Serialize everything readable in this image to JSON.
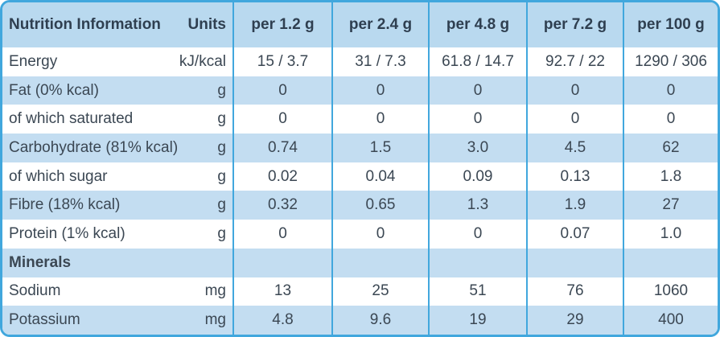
{
  "table": {
    "header": {
      "label": "Nutrition Information",
      "units": "Units",
      "columns": [
        "per 1.2 g",
        "per 2.4 g",
        "per 4.8 g",
        "per 7.2 g",
        "per 100 g"
      ]
    },
    "rows": [
      {
        "label": "Energy",
        "unit": "kJ/kcal",
        "values": [
          "15 / 3.7",
          "31 / 7.3",
          "61.8 / 14.7",
          "92.7 / 22",
          "1290 / 306"
        ]
      },
      {
        "label": "Fat (0% kcal)",
        "unit": "g",
        "values": [
          "0",
          "0",
          "0",
          "0",
          "0"
        ]
      },
      {
        "label": "of which saturated",
        "unit": "g",
        "values": [
          "0",
          "0",
          "0",
          "0",
          "0"
        ]
      },
      {
        "label": "Carbohydrate (81% kcal)",
        "unit": "g",
        "values": [
          "0.74",
          "1.5",
          "3.0",
          "4.5",
          "62"
        ]
      },
      {
        "label": "of which sugar",
        "unit": "g",
        "values": [
          "0.02",
          "0.04",
          "0.09",
          "0.13",
          "1.8"
        ]
      },
      {
        "label": "Fibre (18% kcal)",
        "unit": "g",
        "values": [
          "0.32",
          "0.65",
          "1.3",
          "1.9",
          "27"
        ]
      },
      {
        "label": "Protein (1% kcal)",
        "unit": "g",
        "values": [
          "0",
          "0",
          "0",
          "0.07",
          "1.0"
        ]
      },
      {
        "label": "Minerals"
      },
      {
        "label": "Sodium",
        "unit": "mg",
        "values": [
          "13",
          "25",
          "51",
          "76",
          "1060"
        ]
      },
      {
        "label": "Potassium",
        "unit": "mg",
        "values": [
          "4.8",
          "9.6",
          "19",
          "29",
          "400"
        ]
      }
    ]
  }
}
